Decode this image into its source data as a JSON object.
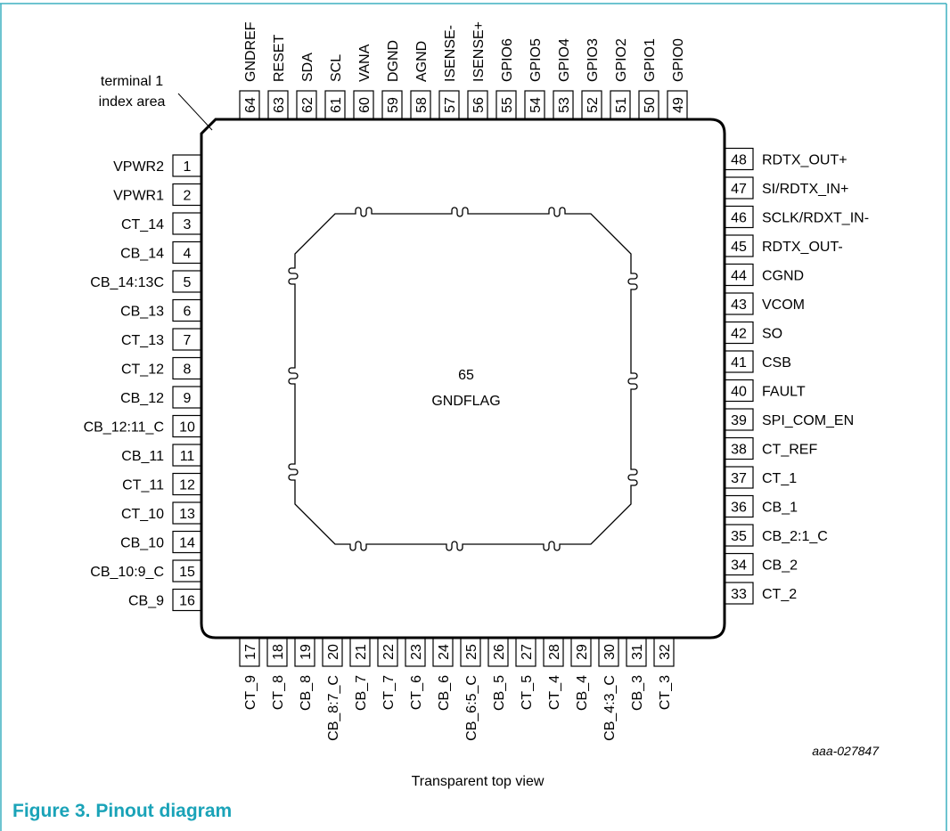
{
  "figure": {
    "caption": "Figure 3.  Pinout diagram",
    "view_label": "Transparent top view",
    "drawing_id": "aaa-027847",
    "index_label_line1": "terminal 1",
    "index_label_line2": "index area",
    "pad_number": "65",
    "pad_name": "GNDFLAG",
    "frame_color": "#3fb0c0",
    "caption_color": "#1aa3b8"
  },
  "pins": {
    "left": [
      {
        "num": "1",
        "name": "VPWR2"
      },
      {
        "num": "2",
        "name": "VPWR1"
      },
      {
        "num": "3",
        "name": "CT_14"
      },
      {
        "num": "4",
        "name": "CB_14"
      },
      {
        "num": "5",
        "name": "CB_14:13C"
      },
      {
        "num": "6",
        "name": "CB_13"
      },
      {
        "num": "7",
        "name": "CT_13"
      },
      {
        "num": "8",
        "name": "CT_12"
      },
      {
        "num": "9",
        "name": "CB_12"
      },
      {
        "num": "10",
        "name": "CB_12:11_C"
      },
      {
        "num": "11",
        "name": "CB_11"
      },
      {
        "num": "12",
        "name": "CT_11"
      },
      {
        "num": "13",
        "name": "CT_10"
      },
      {
        "num": "14",
        "name": "CB_10"
      },
      {
        "num": "15",
        "name": "CB_10:9_C"
      },
      {
        "num": "16",
        "name": "CB_9"
      }
    ],
    "bottom": [
      {
        "num": "17",
        "name": "CT_9"
      },
      {
        "num": "18",
        "name": "CT_8"
      },
      {
        "num": "19",
        "name": "CB_8"
      },
      {
        "num": "20",
        "name": "CB_8:7_C"
      },
      {
        "num": "21",
        "name": "CB_7"
      },
      {
        "num": "22",
        "name": "CT_7"
      },
      {
        "num": "23",
        "name": "CT_6"
      },
      {
        "num": "24",
        "name": "CB_6"
      },
      {
        "num": "25",
        "name": "CB_6:5_C"
      },
      {
        "num": "26",
        "name": "CB_5"
      },
      {
        "num": "27",
        "name": "CT_5"
      },
      {
        "num": "28",
        "name": "CT_4"
      },
      {
        "num": "29",
        "name": "CB_4"
      },
      {
        "num": "30",
        "name": "CB_4:3_C"
      },
      {
        "num": "31",
        "name": "CB_3"
      },
      {
        "num": "32",
        "name": "CT_3"
      }
    ],
    "right": [
      {
        "num": "33",
        "name": "CT_2"
      },
      {
        "num": "34",
        "name": "CB_2"
      },
      {
        "num": "35",
        "name": "CB_2:1_C"
      },
      {
        "num": "36",
        "name": "CB_1"
      },
      {
        "num": "37",
        "name": "CT_1"
      },
      {
        "num": "38",
        "name": "CT_REF"
      },
      {
        "num": "39",
        "name": "SPI_COM_EN"
      },
      {
        "num": "40",
        "name": "FAULT"
      },
      {
        "num": "41",
        "name": "CSB"
      },
      {
        "num": "42",
        "name": "SO"
      },
      {
        "num": "43",
        "name": "VCOM"
      },
      {
        "num": "44",
        "name": "CGND"
      },
      {
        "num": "45",
        "name": "RDTX_OUT-"
      },
      {
        "num": "46",
        "name": "SCLK/RDXT_IN-"
      },
      {
        "num": "47",
        "name": "SI/RDTX_IN+"
      },
      {
        "num": "48",
        "name": "RDTX_OUT+"
      }
    ],
    "top": [
      {
        "num": "49",
        "name": "GPIO0"
      },
      {
        "num": "50",
        "name": "GPIO1"
      },
      {
        "num": "51",
        "name": "GPIO2"
      },
      {
        "num": "52",
        "name": "GPIO3"
      },
      {
        "num": "53",
        "name": "GPIO4"
      },
      {
        "num": "54",
        "name": "GPIO5"
      },
      {
        "num": "55",
        "name": "GPIO6"
      },
      {
        "num": "56",
        "name": "ISENSE+"
      },
      {
        "num": "57",
        "name": "ISENSE-"
      },
      {
        "num": "58",
        "name": "AGND"
      },
      {
        "num": "59",
        "name": "DGND"
      },
      {
        "num": "60",
        "name": "VANA"
      },
      {
        "num": "61",
        "name": "SCL"
      },
      {
        "num": "62",
        "name": "SDA"
      },
      {
        "num": "63",
        "name": "RESET"
      },
      {
        "num": "64",
        "name": "GNDREF"
      }
    ]
  }
}
